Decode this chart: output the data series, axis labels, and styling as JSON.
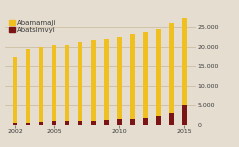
{
  "years": [
    2002,
    2003,
    2004,
    2005,
    2006,
    2007,
    2008,
    2009,
    2010,
    2011,
    2012,
    2013,
    2014,
    2015
  ],
  "abamamaji": [
    17000,
    18800,
    19200,
    19500,
    19600,
    20300,
    20600,
    20700,
    21200,
    21600,
    22000,
    22400,
    23000,
    24500
  ],
  "abatsimvyi": [
    400,
    600,
    700,
    900,
    900,
    900,
    1100,
    1200,
    1400,
    1600,
    1900,
    2300,
    3000,
    5000
  ],
  "bar_color_main": "#F0C020",
  "bar_color_secondary": "#7B1515",
  "background_color": "#E5DDD0",
  "grid_color": "#C8B89A",
  "text_color": "#3a3a3a",
  "legend_labels": [
    "Abamamaji",
    "Abatsimvyi"
  ],
  "ylim": [
    0,
    27500
  ],
  "yticks": [
    0,
    5000,
    10000,
    15000,
    20000,
    25000
  ],
  "ytick_labels": [
    "0",
    "5.000",
    "10.000",
    "15.000",
    "20.000",
    "25.000"
  ],
  "xticks": [
    2002,
    2005,
    2010,
    2015
  ],
  "legend_fontsize": 5.0,
  "tick_fontsize": 4.5,
  "bar_width": 0.35
}
